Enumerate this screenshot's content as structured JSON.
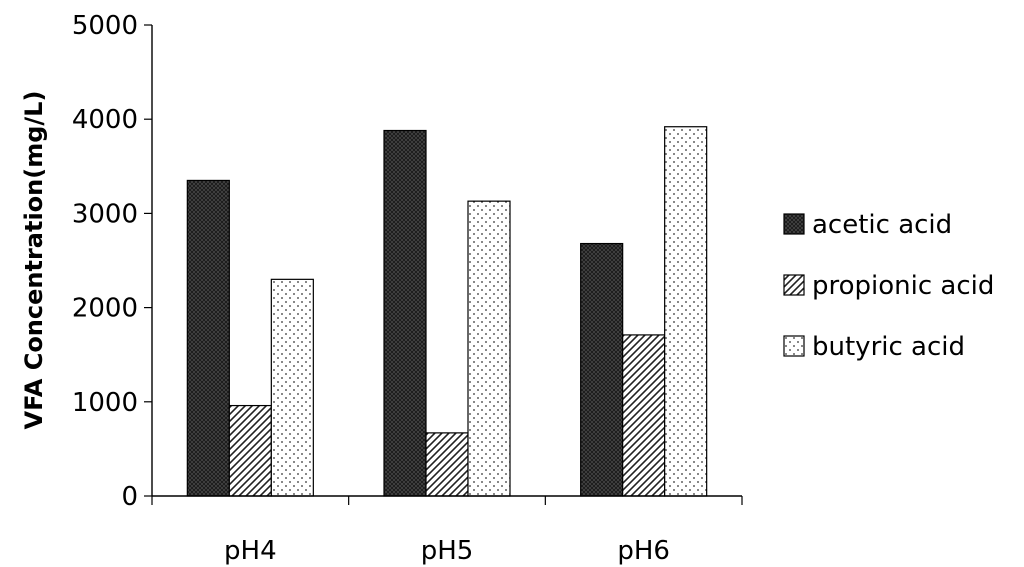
{
  "chart_data": {
    "type": "bar",
    "title": "",
    "xlabel": "",
    "ylabel": "VFA Concentration(mg/L)",
    "ylim": [
      0,
      5000
    ],
    "yticks": [
      0,
      1000,
      2000,
      3000,
      4000,
      5000
    ],
    "ytick_labels": [
      "0",
      "1000",
      "2000",
      "3000",
      "4000",
      "5000"
    ],
    "grid": false,
    "legend_position": "right",
    "categories": [
      "pH4",
      "pH5",
      "pH6"
    ],
    "series": [
      {
        "name": "acetic acid",
        "pattern": "dark-crosshatch",
        "values": [
          3350,
          3880,
          2680
        ]
      },
      {
        "name": "propionic acid",
        "pattern": "diagonal-stripes",
        "values": [
          960,
          670,
          1710
        ]
      },
      {
        "name": "butyric acid",
        "pattern": "dots",
        "values": [
          2300,
          3130,
          3920
        ]
      }
    ]
  }
}
